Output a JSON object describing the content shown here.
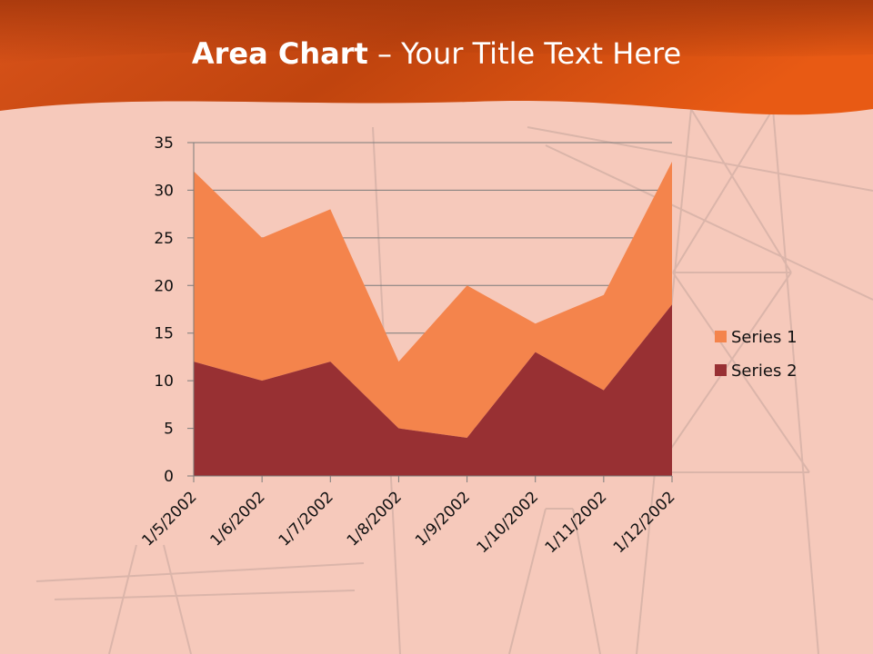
{
  "slide": {
    "title_bold": "Area Chart",
    "title_rest": " – Your Title Text Here"
  },
  "colors": {
    "header_dark": "#a83a0a",
    "header_light": "#ee6a2a",
    "background": "#f6c9bb",
    "series1": "#f4844c",
    "series2": "#983033",
    "gridline": "#7a7a7a"
  },
  "chart_data": {
    "type": "area",
    "stacked": true,
    "categories": [
      "1/5/2002",
      "1/6/2002",
      "1/7/2002",
      "1/8/2002",
      "1/9/2002",
      "1/10/2002",
      "1/11/2002",
      "1/12/2002"
    ],
    "series": [
      {
        "name": "Series 1",
        "values": [
          20,
          15,
          16,
          7,
          16,
          3,
          10,
          15
        ]
      },
      {
        "name": "Series 2",
        "values": [
          12,
          10,
          12,
          5,
          4,
          13,
          9,
          18
        ]
      }
    ],
    "ylim": [
      0,
      35
    ],
    "yticks": [
      "0",
      "5",
      "10",
      "15",
      "20",
      "25",
      "30",
      "35"
    ],
    "grid": true,
    "legend_position": "right"
  }
}
